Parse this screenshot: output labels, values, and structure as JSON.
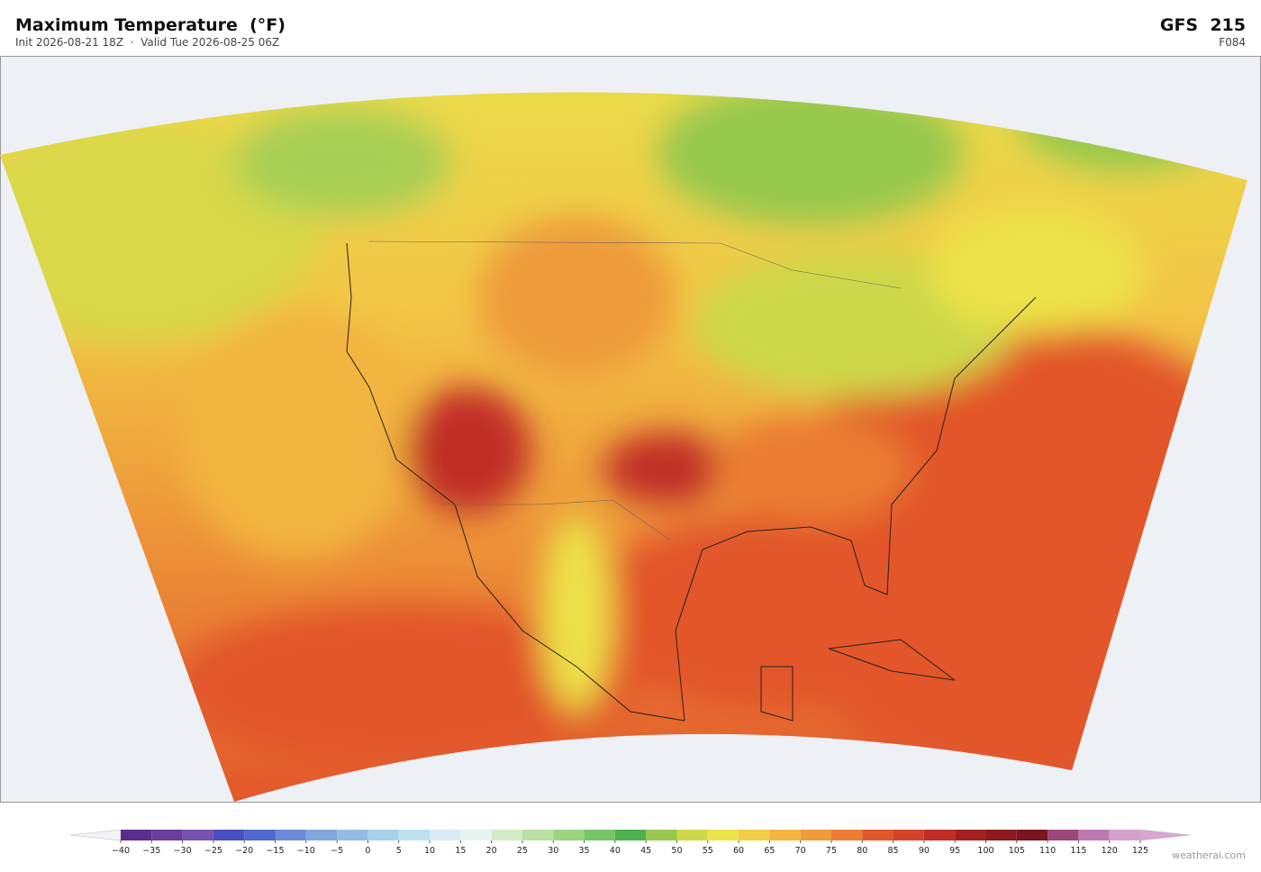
{
  "header": {
    "title": "Maximum Temperature  (°F)",
    "subtitle": "Init 2026-08-21 18Z  ·  Valid Tue 2026-08-25 06Z",
    "model": "GFS  215",
    "forecast_hour": "F084"
  },
  "colorbar": {
    "ticks": [
      {
        "value": -40,
        "label": "−40"
      },
      {
        "value": -35,
        "label": "−35"
      },
      {
        "value": -30,
        "label": "−30"
      },
      {
        "value": -25,
        "label": "−25"
      },
      {
        "value": -20,
        "label": "−20"
      },
      {
        "value": -15,
        "label": "−15"
      },
      {
        "value": -10,
        "label": "−10"
      },
      {
        "value": -5,
        "label": "−5"
      },
      0,
      5,
      10,
      15,
      20,
      25,
      30,
      35,
      40,
      45,
      50,
      55,
      60,
      65,
      70,
      75,
      80,
      85,
      90,
      95,
      100,
      105,
      110,
      115,
      120,
      125
    ],
    "colors": [
      "#5b2c8f",
      "#6a3d9a",
      "#7452b0",
      "#4a4fbf",
      "#5068cf",
      "#6a8ad8",
      "#82a6de",
      "#92bde3",
      "#a8d1ea",
      "#c0e0ef",
      "#d6ecf2",
      "#e6f4ee",
      "#d2ecc8",
      "#b8e0a0",
      "#9ad57e",
      "#76c466",
      "#4fb04f",
      "#96c84e",
      "#ccd84a",
      "#ece24a",
      "#f3cc48",
      "#f2b541",
      "#ee9b3a",
      "#ea7d33",
      "#e2562b",
      "#d44328",
      "#c02d25",
      "#a41f22",
      "#8c1a1e",
      "#7a1520",
      "#9a4878",
      "#bd78b0",
      "#d4a0cc"
    ],
    "under_color": "#f2f3f6",
    "over_color": "#d8a6d2"
  },
  "footer": {
    "credit": "weatherai.com"
  }
}
